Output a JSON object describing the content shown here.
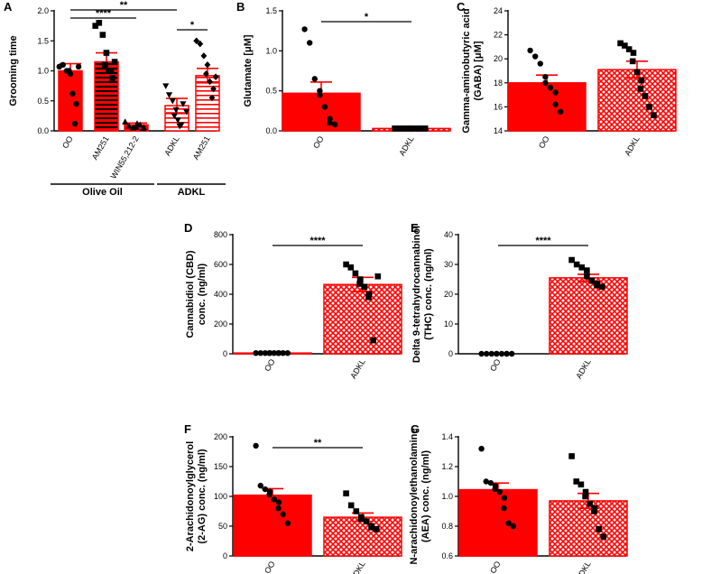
{
  "colors": {
    "red": "#ff0000",
    "black": "#000000"
  },
  "chart_data": [
    {
      "panel": "A",
      "type": "bar",
      "ylabel": "Grooming time",
      "ylim": [
        0,
        2.0
      ],
      "ticks": [
        "0.0",
        "0.5",
        "1.0",
        "1.5",
        "2.0"
      ],
      "tickvals": [
        0,
        0.5,
        1,
        1.5,
        2
      ],
      "categories": [
        "OO",
        "AM251",
        "WIN55,212-2",
        "ADKL",
        "AM251"
      ],
      "values": [
        1.0,
        1.15,
        0.1,
        0.42,
        0.92
      ],
      "errors": [
        0.12,
        0.15,
        0.03,
        0.12,
        0.12
      ],
      "patterns": [
        "solid",
        "hstripe-black",
        "solid",
        "hstripe-white",
        "hstripe-white"
      ],
      "points": [
        [
          1.07,
          1.1,
          1.0,
          0.95,
          1.0,
          0.62,
          0.45,
          0.12,
          1.07
        ],
        [
          1.75,
          1.8,
          1.6,
          1.3,
          1.1,
          1.0,
          0.88,
          1.0,
          1.15
        ],
        [
          0.15,
          0.08,
          0.05,
          0.12,
          0.06,
          0.1,
          0.05,
          0.04
        ],
        [
          0.75,
          0.6,
          0.5,
          0.35,
          0.25,
          0.18,
          0.1,
          0.08,
          0.45,
          0.32
        ],
        [
          1.5,
          1.45,
          1.25,
          1.1,
          0.95,
          0.82,
          0.7,
          0.55,
          0.9
        ]
      ],
      "sig": [
        {
          "from": 0,
          "to": 3,
          "label": "**"
        },
        {
          "from": 0,
          "to": 2,
          "label": "****"
        },
        {
          "from": 3,
          "to": 4,
          "label": "*"
        }
      ],
      "groups": [
        {
          "label": "Olive Oil",
          "from": 0,
          "to": 2
        },
        {
          "label": "ADKL",
          "from": 3,
          "to": 4
        }
      ]
    },
    {
      "panel": "B",
      "type": "bar",
      "ylabel": "Glutamate [μM]",
      "ylim": [
        0,
        1.5
      ],
      "ticks": [
        "0.0",
        "0.5",
        "1.0",
        "1.5"
      ],
      "tickvals": [
        0,
        0.5,
        1,
        1.5
      ],
      "categories": [
        "OO",
        "ADKL"
      ],
      "values": [
        0.47,
        0.03
      ],
      "errors": [
        0.14,
        0.01
      ],
      "patterns": [
        "solid",
        "check"
      ],
      "points": [
        [
          1.27,
          1.1,
          0.65,
          0.5,
          0.45,
          0.3,
          0.15,
          0.1,
          0.08
        ],
        [
          0.03,
          0.03,
          0.03,
          0.03,
          0.03,
          0.03,
          0.03,
          0.03,
          0.03
        ]
      ],
      "sig": [
        {
          "from": 0,
          "to": 1,
          "label": "*"
        }
      ]
    },
    {
      "panel": "C",
      "type": "bar",
      "ylabel": "Gamma-aminobutyric acid",
      "ylabel2": "(GABA) [μM]",
      "ylim": [
        14,
        24
      ],
      "ticks": [
        "14",
        "16",
        "18",
        "20",
        "22",
        "24"
      ],
      "tickvals": [
        14,
        16,
        18,
        20,
        22,
        24
      ],
      "categories": [
        "OO",
        "ADKL"
      ],
      "values": [
        18.0,
        19.1
      ],
      "errors": [
        0.65,
        0.7
      ],
      "patterns": [
        "solid",
        "check"
      ],
      "points": [
        [
          20.7,
          20.2,
          19.6,
          18.5,
          18.0,
          17.6,
          17.2,
          16.2,
          15.6
        ],
        [
          21.3,
          21.1,
          20.8,
          20.5,
          19.8,
          18.9,
          18.2,
          17.5,
          16.9,
          16.0,
          15.3
        ]
      ],
      "sig": []
    },
    {
      "panel": "D",
      "type": "bar",
      "ylabel": "Cannabidiol (CBD)",
      "ylabel2": "conc. (ng/ml)",
      "ylim": [
        0,
        800
      ],
      "ticks": [
        "0",
        "200",
        "400",
        "600",
        "800"
      ],
      "tickvals": [
        0,
        200,
        400,
        600,
        800
      ],
      "categories": [
        "OO",
        "ADKL"
      ],
      "values": [
        5,
        465
      ],
      "errors": [
        2,
        48
      ],
      "patterns": [
        "solid",
        "check"
      ],
      "points": [
        [
          5,
          5,
          5,
          5,
          5,
          5,
          5,
          5,
          5,
          5
        ],
        [
          600,
          580,
          540,
          500,
          470,
          450,
          400,
          380,
          90,
          520
        ]
      ],
      "sig": [
        {
          "from": 0,
          "to": 1,
          "label": "****"
        }
      ]
    },
    {
      "panel": "E",
      "type": "bar",
      "ylabel": "Delta 9-tetrahydrocannabinol",
      "ylabel2": "(THC) conc. (ng/ml)",
      "ylim": [
        0,
        40
      ],
      "ticks": [
        "0",
        "10",
        "20",
        "30",
        "40"
      ],
      "tickvals": [
        0,
        10,
        20,
        30,
        40
      ],
      "categories": [
        "OO",
        "ADKL"
      ],
      "values": [
        0,
        25.5
      ],
      "errors": [
        0,
        1.2
      ],
      "patterns": [
        "solid",
        "check"
      ],
      "points": [
        [
          0,
          0,
          0,
          0,
          0,
          0,
          0,
          0,
          0
        ],
        [
          31.5,
          30,
          29,
          28,
          26,
          24.5,
          23.5,
          23,
          22.5
        ]
      ],
      "sig": [
        {
          "from": 0,
          "to": 1,
          "label": "****"
        }
      ]
    },
    {
      "panel": "F",
      "type": "bar",
      "ylabel": "2-Arachidonoylglycerol",
      "ylabel2": "(2-AG) conc. (ng/ml)",
      "ylim": [
        0,
        200
      ],
      "ticks": [
        "0",
        "50",
        "100",
        "150",
        "200"
      ],
      "tickvals": [
        0,
        50,
        100,
        150,
        200
      ],
      "categories": [
        "OO",
        "ADKL"
      ],
      "values": [
        102,
        65
      ],
      "errors": [
        11,
        7
      ],
      "patterns": [
        "solid",
        "check"
      ],
      "points": [
        [
          185,
          118,
          112,
          108,
          103,
          95,
          90,
          80,
          70,
          55
        ],
        [
          105,
          85,
          75,
          65,
          62,
          58,
          50,
          48,
          45
        ]
      ],
      "sig": [
        {
          "from": 0,
          "to": 1,
          "label": "**"
        }
      ]
    },
    {
      "panel": "G",
      "type": "bar",
      "ylabel": "N-arachidonoylethanolamine",
      "ylabel2": "(AEA) conc. (ng/ml)",
      "ylim": [
        0.6,
        1.4
      ],
      "ticks": [
        "0.6",
        "0.8",
        "1.0",
        "1.2",
        "1.4"
      ],
      "tickvals": [
        0.6,
        0.8,
        1.0,
        1.2,
        1.4
      ],
      "categories": [
        "OO",
        "ADKL"
      ],
      "values": [
        1.045,
        0.97
      ],
      "errors": [
        0.045,
        0.05
      ],
      "patterns": [
        "solid",
        "check"
      ],
      "points": [
        [
          1.32,
          1.1,
          1.09,
          1.07,
          1.05,
          1.03,
          0.99,
          0.92,
          0.82,
          0.8
        ],
        [
          1.27,
          1.1,
          1.08,
          1.03,
          1.0,
          0.95,
          0.92,
          0.9,
          0.78,
          0.73
        ]
      ],
      "sig": []
    }
  ]
}
